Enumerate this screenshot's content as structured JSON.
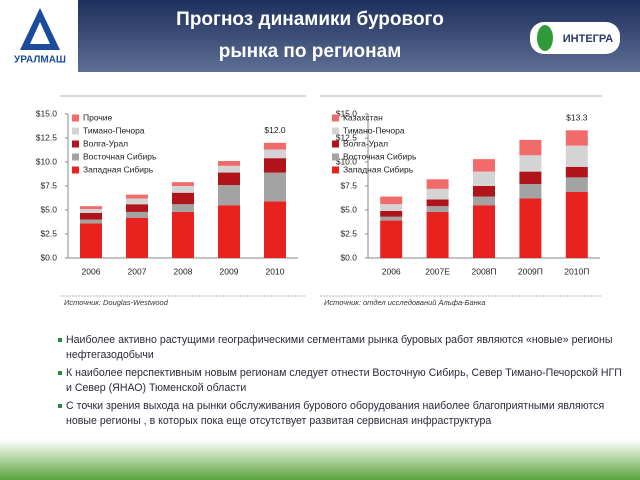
{
  "header": {
    "title_lines": [
      "Прогноз динамики бурового",
      "рынка по регионам"
    ],
    "left_logo": "УРАЛМАШ",
    "right_logo": "ИНТЕГРА"
  },
  "chart_data": [
    {
      "type": "stacked_bar",
      "source": "Источник: Douglas-Westwood",
      "categories": [
        "2006",
        "2007",
        "2008",
        "2009",
        "2010"
      ],
      "series": [
        {
          "name": "Западная Сибирь",
          "color": "#e8231f",
          "values": [
            3.6,
            4.2,
            4.8,
            5.5,
            5.9
          ]
        },
        {
          "name": "Восточная Сибирь",
          "color": "#a3a3a3",
          "values": [
            0.4,
            0.6,
            0.8,
            2.1,
            3.0
          ]
        },
        {
          "name": "Волга-Урал",
          "color": "#b0141a",
          "values": [
            0.7,
            0.8,
            1.2,
            1.3,
            1.5
          ]
        },
        {
          "name": "Тимано-Печора",
          "color": "#d4d4d4",
          "values": [
            0.4,
            0.6,
            0.7,
            0.7,
            0.9
          ]
        },
        {
          "name": "Прочие",
          "color": "#f26b6b",
          "values": [
            0.3,
            0.4,
            0.4,
            0.5,
            0.7
          ]
        }
      ],
      "ylim": [
        0,
        15
      ],
      "yticks": [
        {
          "value": 0,
          "label": "$0.0"
        },
        {
          "value": 2.5,
          "label": "$2.5"
        },
        {
          "value": 5,
          "label": "$5.0"
        },
        {
          "value": 7.5,
          "label": "$7.5"
        },
        {
          "value": 10,
          "label": "$10.0"
        },
        {
          "value": 12.5,
          "label": "$12.5"
        },
        {
          "value": 15,
          "label": "$15.0"
        }
      ],
      "annotations": [
        {
          "text": "$12.0",
          "x": "2010"
        }
      ]
    },
    {
      "type": "stacked_bar",
      "source": "Источник: отдел исследований Альфа-Банка",
      "categories": [
        "2006",
        "2007E",
        "2008П",
        "2009П",
        "2010П"
      ],
      "series": [
        {
          "name": "Западная Сибирь",
          "color": "#e8231f",
          "values": [
            3.9,
            4.8,
            5.5,
            6.2,
            6.9
          ]
        },
        {
          "name": "Восточная Сибирь",
          "color": "#a3a3a3",
          "values": [
            0.4,
            0.6,
            0.9,
            1.5,
            1.5
          ]
        },
        {
          "name": "Волга-Урал",
          "color": "#b0141a",
          "values": [
            0.6,
            0.7,
            1.1,
            1.3,
            1.1
          ]
        },
        {
          "name": "Тимано-Печора",
          "color": "#d4d4d4",
          "values": [
            0.7,
            1.1,
            1.5,
            1.7,
            2.2
          ]
        },
        {
          "name": "Казахстан",
          "color": "#f26b6b",
          "values": [
            0.8,
            1.0,
            1.3,
            1.6,
            1.6
          ]
        }
      ],
      "ylim": [
        0,
        15
      ],
      "yticks": [
        {
          "value": 0,
          "label": "$0.0"
        },
        {
          "value": 2.5,
          "label": "$2.5"
        },
        {
          "value": 5,
          "label": "$5.0"
        },
        {
          "value": 7.5,
          "label": "$7.5"
        },
        {
          "value": 10,
          "label": "$10.0"
        },
        {
          "value": 12.5,
          "label": "$12.5"
        },
        {
          "value": 15,
          "label": "$15.0"
        }
      ],
      "annotations": [
        {
          "text": "$13.3",
          "x": "2010П"
        }
      ]
    }
  ],
  "bullets": [
    "Наиболее активно растущими географическими сегментами рынка буровых работ являются «новые» регионы нефтегазодобычи",
    "К наиболее перспективным новым регионам следует отнести Восточную Сибирь, Север Тимано-Печорской НГП и Север (ЯНАО) Тюменской области",
    "С точки зрения выхода на рынки обслуживания бурового оборудования наиболее благоприятными являются новые регионы , в которых пока еще отсутствует развитая сервисная инфраструктура"
  ]
}
